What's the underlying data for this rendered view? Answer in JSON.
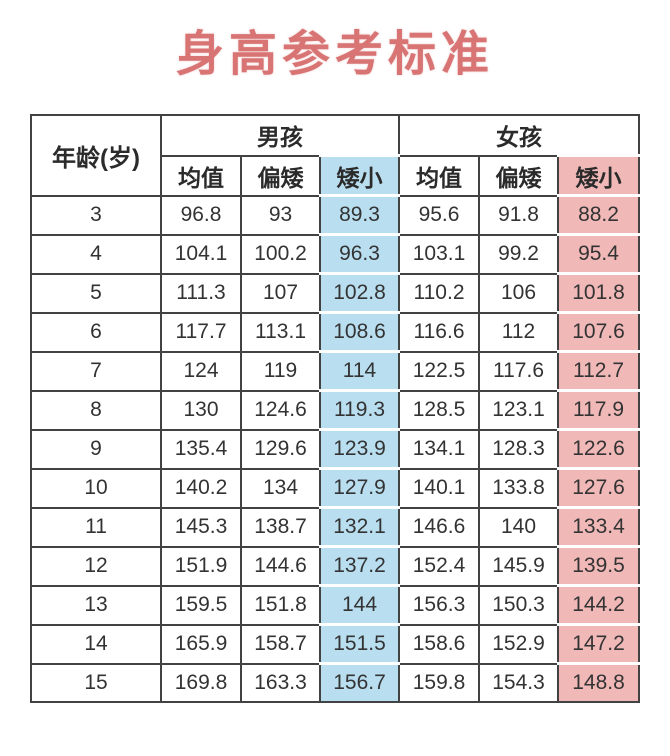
{
  "title": "身高参考标准",
  "colors": {
    "title": "#d87474",
    "boy_highlight": "#b9def0",
    "girl_highlight": "#f1b8b8",
    "border": "#424242",
    "text": "#333333"
  },
  "chart_data": {
    "type": "table",
    "title": "身高参考标准",
    "unit_note": "values are heights (cm) by age",
    "header": {
      "age": "年龄(岁)",
      "boy": "男孩",
      "girl": "女孩",
      "sub": [
        "均值",
        "偏矮",
        "矮小"
      ]
    },
    "columns": [
      "年龄(岁)",
      "男孩均值",
      "男孩偏矮",
      "男孩矮小",
      "女孩均值",
      "女孩偏矮",
      "女孩矮小"
    ],
    "rows": [
      [
        3,
        96.8,
        93,
        89.3,
        95.6,
        91.8,
        88.2
      ],
      [
        4,
        104.1,
        100.2,
        96.3,
        103.1,
        99.2,
        95.4
      ],
      [
        5,
        111.3,
        107,
        102.8,
        110.2,
        106,
        101.8
      ],
      [
        6,
        117.7,
        113.1,
        108.6,
        116.6,
        112,
        107.6
      ],
      [
        7,
        124,
        119,
        114,
        122.5,
        117.6,
        112.7
      ],
      [
        8,
        130,
        124.6,
        119.3,
        128.5,
        123.1,
        117.9
      ],
      [
        9,
        135.4,
        129.6,
        123.9,
        134.1,
        128.3,
        122.6
      ],
      [
        10,
        140.2,
        134,
        127.9,
        140.1,
        133.8,
        127.6
      ],
      [
        11,
        145.3,
        138.7,
        132.1,
        146.6,
        140,
        133.4
      ],
      [
        12,
        151.9,
        144.6,
        137.2,
        152.4,
        145.9,
        139.5
      ],
      [
        13,
        159.5,
        151.8,
        144,
        156.3,
        150.3,
        144.2
      ],
      [
        14,
        165.9,
        158.7,
        151.5,
        158.6,
        152.9,
        147.2
      ],
      [
        15,
        169.8,
        163.3,
        156.7,
        159.8,
        154.3,
        148.8
      ]
    ],
    "layout": {
      "highlighted_columns": [
        "男孩矮小",
        "女孩矮小"
      ],
      "grid": true
    }
  }
}
